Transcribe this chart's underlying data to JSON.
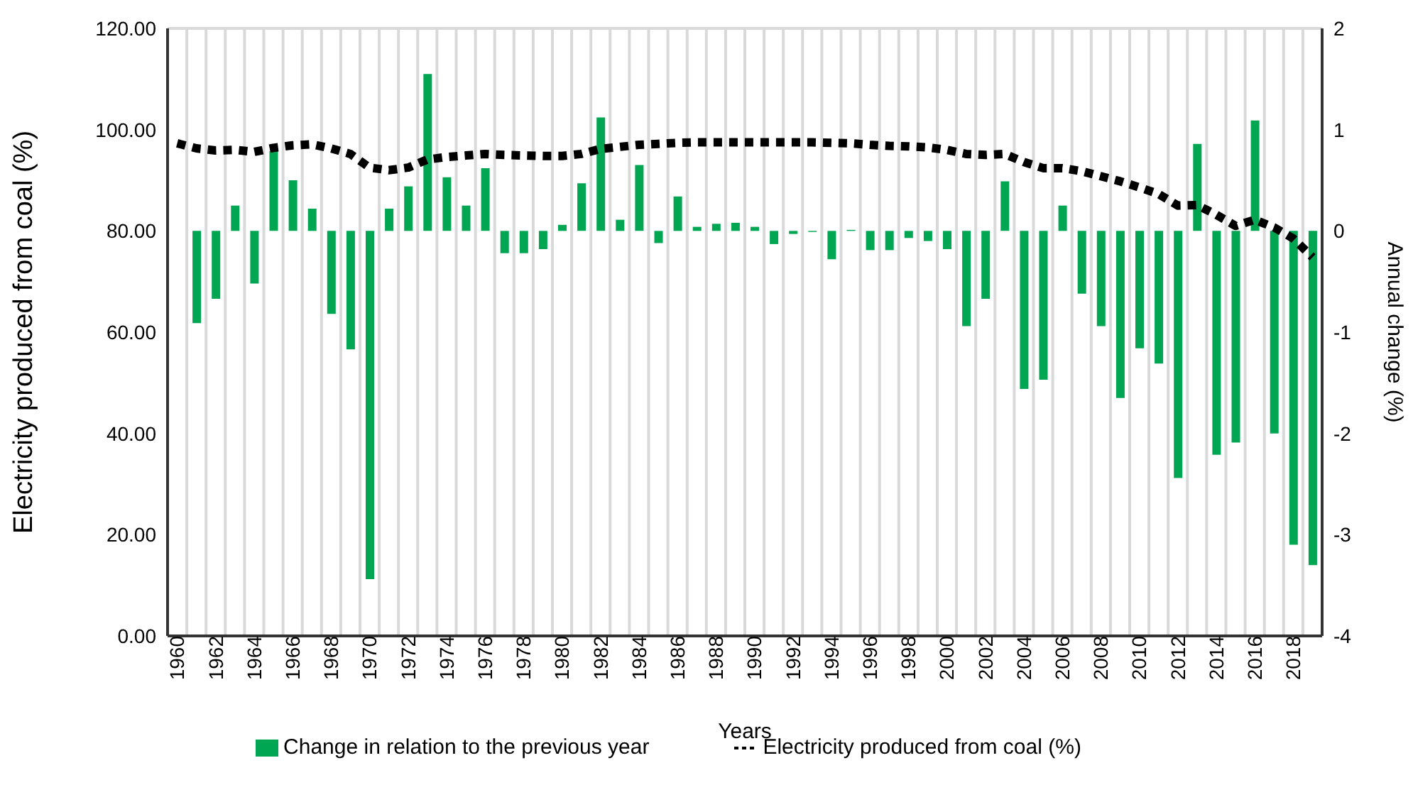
{
  "chart_data": {
    "type": "bar",
    "categories": [
      "1960",
      null,
      "1962",
      null,
      "1964",
      null,
      "1966",
      null,
      "1968",
      null,
      "1970",
      null,
      "1972",
      null,
      "1974",
      null,
      "1976",
      null,
      "1978",
      null,
      "1980",
      null,
      "1982",
      null,
      "1984",
      null,
      "1986",
      null,
      "1988",
      null,
      "1990",
      null,
      "1992",
      null,
      "1994",
      null,
      "1996",
      null,
      "1998",
      null,
      "2000",
      null,
      "2002",
      null,
      "2004",
      null,
      "2006",
      null,
      "2008",
      null,
      "2010",
      null,
      "2012",
      null,
      "2014",
      null,
      "2016",
      null,
      "2018",
      null
    ],
    "series": [
      {
        "name": "Change in relation to the previous year",
        "axis": "y2",
        "color": "#00a651",
        "values": [
          null,
          -0.91,
          -0.67,
          0.25,
          -0.52,
          0.79,
          0.5,
          0.22,
          -0.82,
          -1.17,
          -3.44,
          0.22,
          0.44,
          1.55,
          0.53,
          0.25,
          0.62,
          -0.22,
          -0.22,
          -0.18,
          0.06,
          0.47,
          1.12,
          0.11,
          0.65,
          -0.12,
          0.34,
          0.04,
          0.07,
          0.08,
          0.04,
          -0.13,
          -0.03,
          -0.01,
          -0.28,
          0.01,
          -0.19,
          -0.19,
          -0.07,
          -0.1,
          -0.18,
          -0.94,
          -0.67,
          0.49,
          -1.56,
          -1.47,
          0.25,
          -0.62,
          -0.94,
          -1.65,
          -1.16,
          -1.31,
          -2.44,
          0.86,
          -2.21,
          -2.09,
          1.09,
          -2,
          -3.1,
          -3.3
        ]
      },
      {
        "name": "Electricity produced from coal (%)",
        "type": "line",
        "axis": "y",
        "color": "#000000",
        "line_style": "dotted",
        "values": [
          97.3,
          96.3,
          95.9,
          96,
          95.6,
          96.4,
          96.9,
          97.1,
          96.3,
          95.2,
          92.5,
          92,
          92.5,
          94.1,
          94.6,
          94.9,
          95.2,
          95,
          94.9,
          94.8,
          94.8,
          95.2,
          96.2,
          96.6,
          97,
          97.2,
          97.4,
          97.5,
          97.5,
          97.5,
          97.5,
          97.5,
          97.5,
          97.5,
          97.4,
          97.3,
          97,
          96.8,
          96.7,
          96.5,
          96,
          95.2,
          95,
          95.2,
          93.6,
          92.4,
          92.4,
          91.8,
          90.8,
          89.8,
          88.6,
          87.3,
          85,
          85.1,
          83.2,
          81,
          82.2,
          80.7,
          78.5,
          74.8
        ]
      }
    ],
    "xlabel": "Years",
    "ylabel": "Electricity produced from coal (%)",
    "y2label": "Annual change (%)",
    "ylim": [
      0,
      120
    ],
    "yticks": [
      {
        "value": 0,
        "label": "0.00"
      },
      {
        "value": 20,
        "label": "20.00"
      },
      {
        "value": 40,
        "label": "40.00"
      },
      {
        "value": 60,
        "label": "60.00"
      },
      {
        "value": 80,
        "label": "80.00"
      },
      {
        "value": 100,
        "label": "100.00"
      },
      {
        "value": 120,
        "label": "120.00"
      }
    ],
    "y2lim": [
      -4,
      2
    ],
    "y2ticks": [
      -4,
      -3,
      -2,
      -1,
      0,
      1,
      2
    ],
    "grid": true,
    "legend": "bottom"
  }
}
